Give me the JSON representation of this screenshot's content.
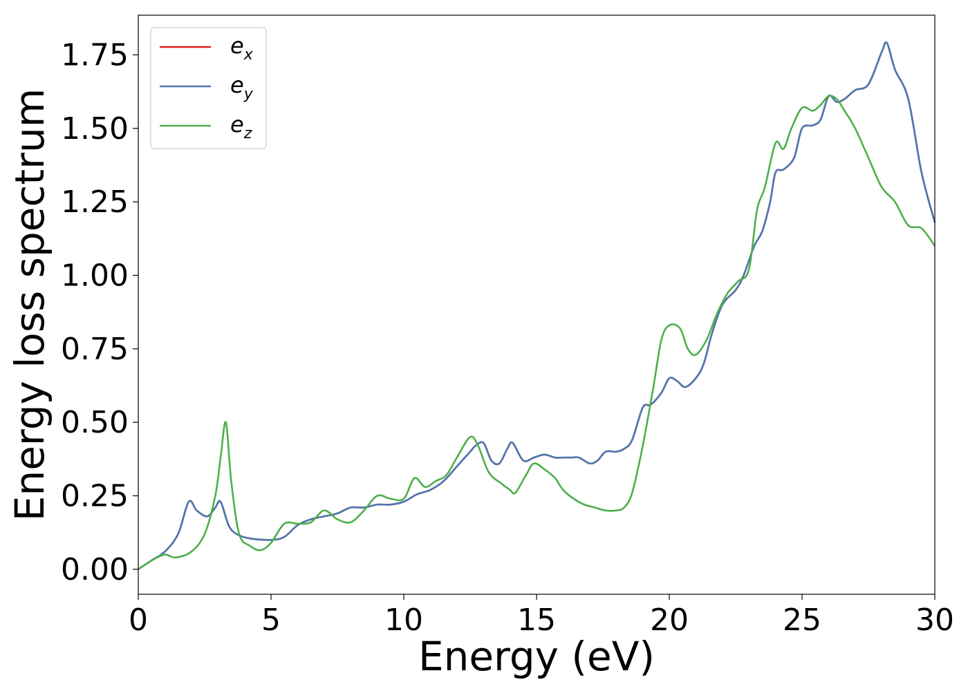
{
  "chart_data": {
    "type": "line",
    "title": "",
    "xlabel": "Energy (eV)",
    "ylabel": "Energy loss spectrum",
    "xlim": [
      0,
      30
    ],
    "ylim": [
      -0.085,
      1.885
    ],
    "xticks": [
      0,
      5,
      10,
      15,
      20,
      25,
      30
    ],
    "xtick_labels": [
      "0",
      "5",
      "10",
      "15",
      "20",
      "25",
      "30"
    ],
    "yticks": [
      0.0,
      0.25,
      0.5,
      0.75,
      1.0,
      1.25,
      1.5,
      1.75
    ],
    "ytick_labels": [
      "0.00",
      "0.25",
      "0.50",
      "0.75",
      "1.00",
      "1.25",
      "1.50",
      "1.75"
    ],
    "grid": false,
    "legend_position": "top-left",
    "series": [
      {
        "name": "e_x",
        "legend_base": "e",
        "legend_sub": "x",
        "color": "#e41a1c",
        "x": [
          0,
          0.5,
          1,
          1.5,
          1.9,
          2.2,
          2.6,
          2.9,
          3.1,
          3.4,
          3.7,
          4.2,
          5,
          5.5,
          6,
          6.5,
          7,
          7.5,
          8,
          8.5,
          9,
          9.5,
          10,
          10.5,
          11,
          11.5,
          12,
          12.5,
          12.7,
          13,
          13.3,
          13.6,
          13.9,
          14.1,
          14.5,
          14.9,
          15.3,
          15.7,
          16,
          16.3,
          16.6,
          17,
          17.3,
          17.6,
          18,
          18.3,
          18.6,
          19,
          19.3,
          19.7,
          20,
          20.3,
          20.6,
          21,
          21.3,
          21.6,
          22,
          22.5,
          22.8,
          23.2,
          23.5,
          23.8,
          24,
          24.3,
          24.7,
          25,
          25.4,
          25.7,
          26,
          26.3,
          26.6,
          27,
          27.5,
          28,
          28.2,
          28.5,
          29,
          29.5,
          30
        ],
        "y": [
          0,
          0.03,
          0.06,
          0.12,
          0.23,
          0.2,
          0.18,
          0.21,
          0.23,
          0.15,
          0.12,
          0.105,
          0.1,
          0.11,
          0.15,
          0.17,
          0.18,
          0.19,
          0.21,
          0.21,
          0.22,
          0.22,
          0.23,
          0.255,
          0.27,
          0.3,
          0.35,
          0.4,
          0.42,
          0.43,
          0.37,
          0.36,
          0.41,
          0.43,
          0.37,
          0.38,
          0.39,
          0.38,
          0.38,
          0.38,
          0.38,
          0.36,
          0.37,
          0.4,
          0.4,
          0.41,
          0.44,
          0.55,
          0.56,
          0.6,
          0.65,
          0.64,
          0.62,
          0.65,
          0.7,
          0.8,
          0.9,
          0.95,
          1.0,
          1.1,
          1.15,
          1.25,
          1.35,
          1.36,
          1.4,
          1.5,
          1.51,
          1.53,
          1.61,
          1.59,
          1.6,
          1.63,
          1.65,
          1.76,
          1.79,
          1.7,
          1.6,
          1.35,
          1.18
        ]
      },
      {
        "name": "e_y",
        "legend_base": "e",
        "legend_sub": "y",
        "color": "#4a78b3",
        "x": [
          0,
          0.5,
          1,
          1.5,
          1.9,
          2.2,
          2.6,
          2.9,
          3.1,
          3.4,
          3.7,
          4.2,
          5,
          5.5,
          6,
          6.5,
          7,
          7.5,
          8,
          8.5,
          9,
          9.5,
          10,
          10.5,
          11,
          11.5,
          12,
          12.5,
          12.7,
          13,
          13.3,
          13.6,
          13.9,
          14.1,
          14.5,
          14.9,
          15.3,
          15.7,
          16,
          16.3,
          16.6,
          17,
          17.3,
          17.6,
          18,
          18.3,
          18.6,
          19,
          19.3,
          19.7,
          20,
          20.3,
          20.6,
          21,
          21.3,
          21.6,
          22,
          22.5,
          22.8,
          23.2,
          23.5,
          23.8,
          24,
          24.3,
          24.7,
          25,
          25.4,
          25.7,
          26,
          26.3,
          26.6,
          27,
          27.5,
          28,
          28.2,
          28.5,
          29,
          29.5,
          30
        ],
        "y": [
          0,
          0.03,
          0.06,
          0.12,
          0.23,
          0.2,
          0.18,
          0.21,
          0.23,
          0.15,
          0.12,
          0.105,
          0.1,
          0.11,
          0.15,
          0.17,
          0.18,
          0.19,
          0.21,
          0.21,
          0.22,
          0.22,
          0.23,
          0.255,
          0.27,
          0.3,
          0.35,
          0.4,
          0.42,
          0.43,
          0.37,
          0.36,
          0.41,
          0.43,
          0.37,
          0.38,
          0.39,
          0.38,
          0.38,
          0.38,
          0.38,
          0.36,
          0.37,
          0.4,
          0.4,
          0.41,
          0.44,
          0.55,
          0.56,
          0.6,
          0.65,
          0.64,
          0.62,
          0.65,
          0.7,
          0.8,
          0.9,
          0.95,
          1.0,
          1.1,
          1.15,
          1.25,
          1.35,
          1.36,
          1.4,
          1.5,
          1.51,
          1.53,
          1.61,
          1.59,
          1.6,
          1.63,
          1.65,
          1.76,
          1.79,
          1.7,
          1.6,
          1.35,
          1.18
        ]
      },
      {
        "name": "e_z",
        "legend_base": "e",
        "legend_sub": "z",
        "color": "#4daf4a",
        "x": [
          0,
          0.5,
          1,
          1.4,
          2,
          2.5,
          2.9,
          3.1,
          3.3,
          3.5,
          3.8,
          4.2,
          4.6,
          5,
          5.5,
          6,
          6.5,
          7,
          7.5,
          8,
          8.5,
          9,
          9.5,
          10,
          10.4,
          10.8,
          11.2,
          11.6,
          12,
          12.5,
          12.8,
          13.2,
          13.7,
          14,
          14.2,
          14.6,
          14.9,
          15.3,
          15.7,
          16,
          16.4,
          16.8,
          17.2,
          17.6,
          18,
          18.3,
          18.6,
          19,
          19.4,
          19.7,
          20,
          20.4,
          20.7,
          21,
          21.4,
          21.8,
          22.2,
          22.6,
          23,
          23.3,
          23.6,
          24,
          24.3,
          24.6,
          25,
          25.4,
          25.7,
          26,
          26.3,
          26.6,
          27,
          27.5,
          28,
          28.5,
          29,
          29.5,
          30
        ],
        "y": [
          0,
          0.03,
          0.05,
          0.04,
          0.06,
          0.12,
          0.25,
          0.38,
          0.5,
          0.3,
          0.12,
          0.08,
          0.065,
          0.09,
          0.155,
          0.155,
          0.16,
          0.2,
          0.17,
          0.16,
          0.2,
          0.25,
          0.24,
          0.24,
          0.31,
          0.28,
          0.3,
          0.32,
          0.38,
          0.45,
          0.42,
          0.33,
          0.29,
          0.27,
          0.26,
          0.32,
          0.36,
          0.34,
          0.31,
          0.27,
          0.24,
          0.22,
          0.21,
          0.2,
          0.2,
          0.21,
          0.26,
          0.42,
          0.62,
          0.78,
          0.83,
          0.82,
          0.75,
          0.73,
          0.78,
          0.87,
          0.94,
          0.98,
          1.02,
          1.22,
          1.3,
          1.45,
          1.43,
          1.5,
          1.57,
          1.56,
          1.58,
          1.61,
          1.6,
          1.56,
          1.5,
          1.4,
          1.3,
          1.25,
          1.17,
          1.16,
          1.1
        ]
      }
    ]
  }
}
